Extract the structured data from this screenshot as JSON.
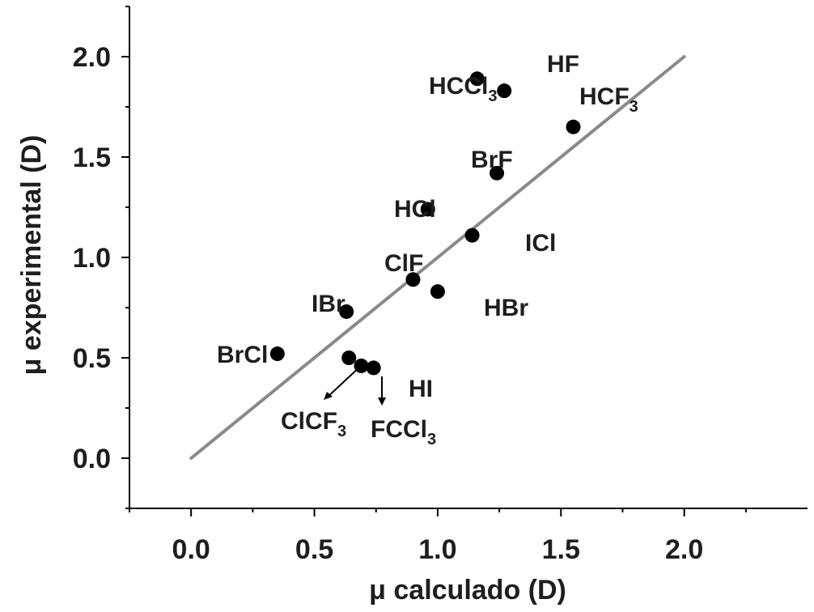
{
  "chart_data": {
    "type": "scatter",
    "xlabel": "μ calculado (D)",
    "ylabel": "μ experimental (D)",
    "xlim": [
      -0.25,
      2.5
    ],
    "ylim": [
      -0.25,
      2.25
    ],
    "xticks": [
      "0.0",
      "0.5",
      "1.0",
      "1.5",
      "2.0"
    ],
    "yticks": [
      "0.0",
      "0.5",
      "1.0",
      "1.5",
      "2.0"
    ],
    "grid": false,
    "points": [
      {
        "label": "HCCl",
        "sub": "3",
        "x": 1.16,
        "y": 1.89
      },
      {
        "label": "HF",
        "sub": "",
        "x": 1.27,
        "y": 1.83
      },
      {
        "label": "HCF",
        "sub": "3",
        "x": 1.55,
        "y": 1.65
      },
      {
        "label": "BrF",
        "sub": "",
        "x": 1.24,
        "y": 1.42
      },
      {
        "label": "HCl",
        "sub": "",
        "x": 0.96,
        "y": 1.24
      },
      {
        "label": "ICl",
        "sub": "",
        "x": 1.14,
        "y": 1.11
      },
      {
        "label": "ClF",
        "sub": "",
        "x": 0.9,
        "y": 0.89
      },
      {
        "label": "HBr",
        "sub": "",
        "x": 1.0,
        "y": 0.83
      },
      {
        "label": "IBr",
        "sub": "",
        "x": 0.63,
        "y": 0.73
      },
      {
        "label": "BrCl",
        "sub": "",
        "x": 0.35,
        "y": 0.52
      },
      {
        "label": "ClCF",
        "sub": "3",
        "x": 0.64,
        "y": 0.5
      },
      {
        "label": "FCCl",
        "sub": "3",
        "x": 0.69,
        "y": 0.46
      },
      {
        "label": "HI",
        "sub": "",
        "x": 0.74,
        "y": 0.45
      }
    ],
    "fit_line": {
      "x": [
        0.0,
        2.0
      ],
      "y": [
        0.0,
        2.0
      ],
      "color": "#8a8a8a"
    },
    "marker_color": "#000000"
  }
}
